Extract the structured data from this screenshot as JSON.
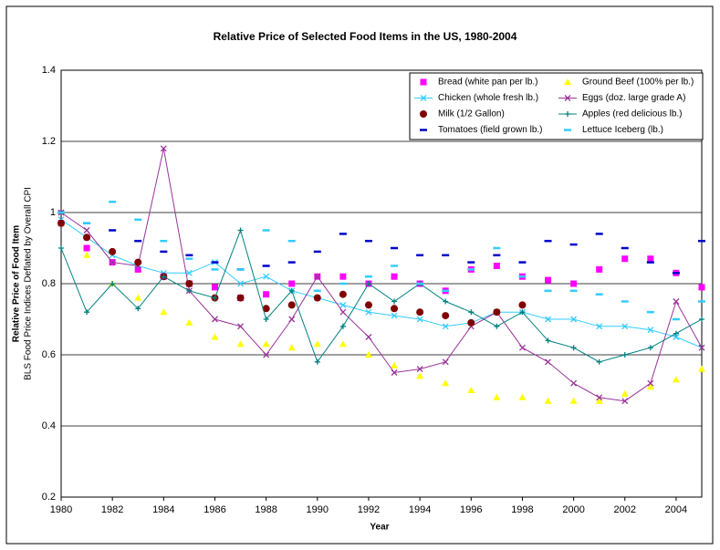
{
  "chart_data": {
    "type": "line",
    "title": "Relative Price of Selected Food Items in the US, 1980-2004",
    "x_label": "Year",
    "y_label": "Relative Price of Food Item",
    "y_label_sub": "BLS Food Price Indices Deflated by Overall CPI",
    "x": [
      1980,
      1981,
      1982,
      1983,
      1984,
      1985,
      1986,
      1987,
      1988,
      1989,
      1990,
      1991,
      1992,
      1993,
      1994,
      1995,
      1996,
      1997,
      1998,
      1999,
      2000,
      2001,
      2002,
      2003,
      2004,
      2005
    ],
    "xlim": [
      1980,
      2005
    ],
    "xticks": [
      1980,
      1982,
      1984,
      1986,
      1988,
      1990,
      1992,
      1994,
      1996,
      1998,
      2000,
      2002,
      2004
    ],
    "ylim": [
      0.2,
      1.4
    ],
    "yticks": [
      0.2,
      0.4,
      0.6,
      0.8,
      1,
      1.2,
      1.4
    ],
    "grid": true,
    "legend": "top-right",
    "series": [
      {
        "name": "Bread (white pan per lb.)",
        "color": "#ff00ff",
        "marker": "square",
        "line": false,
        "values": [
          0.97,
          0.9,
          0.86,
          0.84,
          0.82,
          0.8,
          0.79,
          0.76,
          0.77,
          0.8,
          0.82,
          0.82,
          0.8,
          0.82,
          0.8,
          0.78,
          0.84,
          0.85,
          0.82,
          0.81,
          0.8,
          0.84,
          0.87,
          0.87,
          0.83,
          0.79
        ]
      },
      {
        "name": "Ground Beef (100% per lb.)",
        "color": "#ffff00",
        "marker": "triangle",
        "line": false,
        "values": [
          0.97,
          0.88,
          0.8,
          0.76,
          0.72,
          0.69,
          0.65,
          0.63,
          0.63,
          0.62,
          0.63,
          0.63,
          0.6,
          0.57,
          0.54,
          0.52,
          0.5,
          0.48,
          0.48,
          0.47,
          0.47,
          0.47,
          0.49,
          0.51,
          0.53,
          0.56
        ]
      },
      {
        "name": "Chicken (whole fresh lb.)",
        "color": "#33ccff",
        "marker": "x",
        "line": true,
        "values": [
          0.98,
          0.93,
          0.88,
          0.85,
          0.83,
          0.83,
          0.86,
          0.8,
          0.82,
          0.78,
          0.76,
          0.74,
          0.72,
          0.71,
          0.7,
          0.68,
          0.69,
          0.72,
          0.72,
          0.7,
          0.7,
          0.68,
          0.68,
          0.67,
          0.65,
          0.62
        ]
      },
      {
        "name": "Eggs (doz. large grade A)",
        "color": "#993399",
        "marker": "x",
        "line": true,
        "values": [
          1.0,
          0.95,
          0.86,
          0.85,
          1.18,
          0.78,
          0.7,
          0.68,
          0.6,
          0.7,
          0.82,
          0.72,
          0.65,
          0.55,
          0.56,
          0.58,
          0.68,
          0.72,
          0.62,
          0.58,
          0.52,
          0.48,
          0.47,
          0.52,
          0.75,
          0.62
        ]
      },
      {
        "name": "Milk (1/2 Gallon)",
        "color": "#800000",
        "marker": "circle",
        "line": false,
        "values": [
          0.97,
          0.93,
          0.89,
          0.86,
          0.82,
          0.8,
          0.76,
          0.76,
          0.73,
          0.74,
          0.76,
          0.77,
          0.74,
          0.73,
          0.72,
          0.71,
          0.69,
          0.72,
          0.74,
          null,
          null,
          null,
          null,
          null,
          null,
          null
        ]
      },
      {
        "name": "Apples (red delicious lb.)",
        "color": "#008080",
        "marker": "plus",
        "line": true,
        "values": [
          0.9,
          0.72,
          0.8,
          0.73,
          0.82,
          0.78,
          0.76,
          0.95,
          0.7,
          0.78,
          0.58,
          0.68,
          0.8,
          0.75,
          0.8,
          0.75,
          0.72,
          0.68,
          0.72,
          0.64,
          0.62,
          0.58,
          0.6,
          0.62,
          0.66,
          0.7
        ]
      },
      {
        "name": "Tomatoes (field grown lb.)",
        "color": "#0000cc",
        "marker": "dash",
        "line": false,
        "values": [
          1.0,
          0.97,
          0.95,
          0.92,
          0.89,
          0.88,
          0.86,
          0.84,
          0.85,
          0.86,
          0.89,
          0.94,
          0.92,
          0.9,
          0.88,
          0.88,
          0.86,
          0.88,
          0.86,
          0.92,
          0.91,
          0.94,
          0.9,
          0.86,
          0.83,
          0.92
        ]
      },
      {
        "name": "Lettuce Iceberg (lb.)",
        "color": "#33ccff",
        "marker": "dash",
        "line": false,
        "values": [
          1.0,
          0.97,
          1.03,
          0.98,
          0.92,
          0.87,
          0.84,
          0.84,
          0.95,
          0.92,
          0.78,
          0.8,
          0.82,
          0.85,
          0.8,
          0.78,
          0.84,
          0.9,
          0.82,
          0.78,
          0.78,
          0.77,
          0.75,
          0.72,
          0.7,
          0.75
        ]
      }
    ]
  }
}
